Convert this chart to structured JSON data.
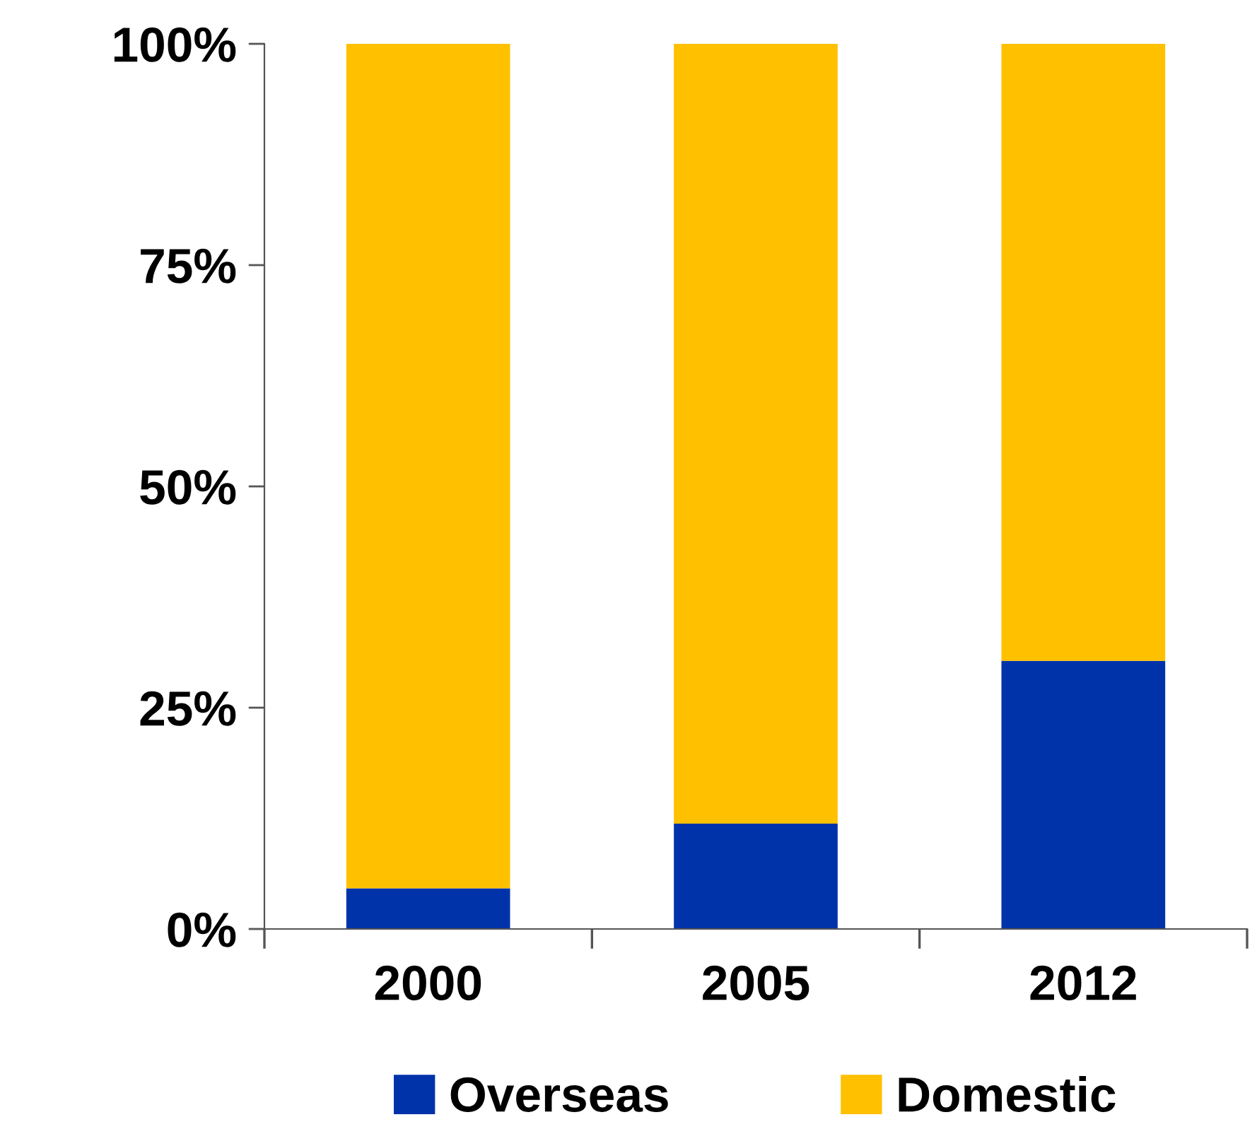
{
  "chart_data": {
    "type": "bar",
    "stacked": true,
    "categories": [
      "2000",
      "2005",
      "2012"
    ],
    "series": [
      {
        "name": "Overseas",
        "color": "#0033aa",
        "values": [
          4.6,
          11.9,
          30.3
        ]
      },
      {
        "name": "Domestic",
        "color": "#ffc000",
        "values": [
          95.4,
          88.1,
          69.7
        ]
      }
    ],
    "ylim": [
      0,
      100
    ],
    "yticks": [
      {
        "value": 0,
        "label": "0%"
      },
      {
        "value": 25,
        "label": "25%"
      },
      {
        "value": 50,
        "label": "50%"
      },
      {
        "value": 75,
        "label": "75%"
      },
      {
        "value": 100,
        "label": "100%"
      }
    ],
    "grid": false,
    "legend": "bottom"
  }
}
